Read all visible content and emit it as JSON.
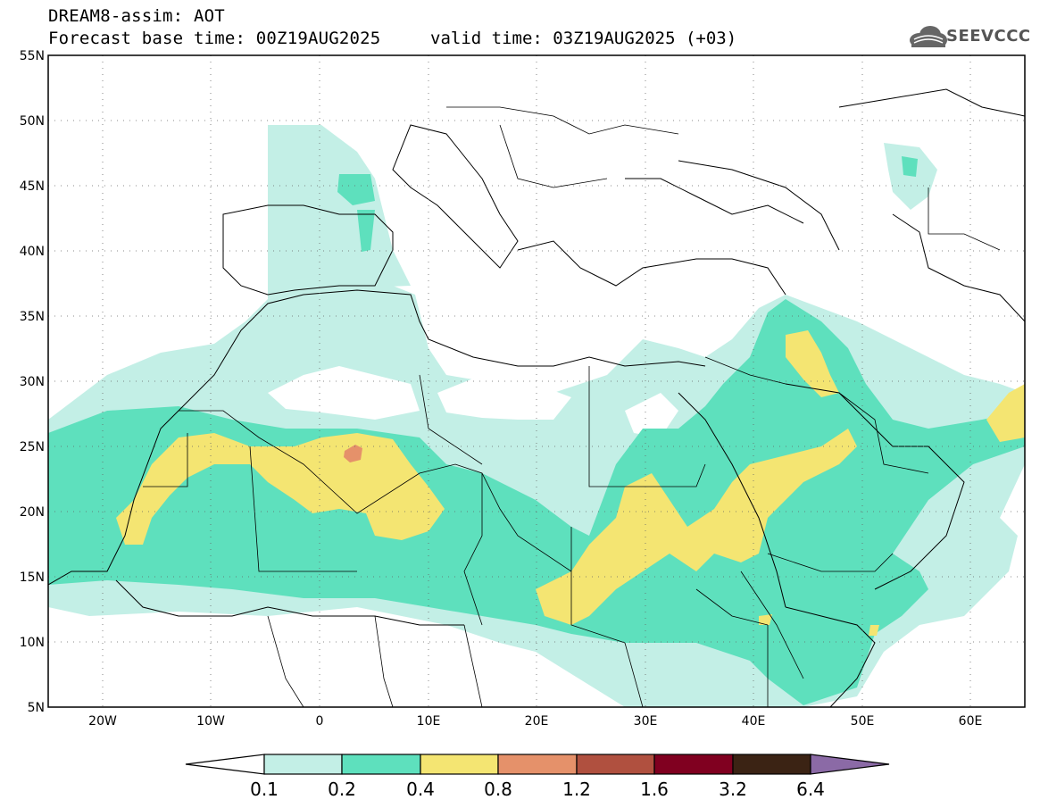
{
  "header": {
    "model_line": "DREAM8-assim: AOT",
    "base_time": "Forecast base time: 00Z19AUG2025",
    "valid_time": "valid time: 03Z19AUG2025 (+03)",
    "logo_text": "SEEVCCC"
  },
  "map": {
    "lon_range": [
      -25,
      65
    ],
    "lat_range": [
      5,
      55
    ],
    "lat_ticks": [
      "55N",
      "50N",
      "45N",
      "40N",
      "35N",
      "30N",
      "25N",
      "20N",
      "15N",
      "10N",
      "5N"
    ],
    "lon_ticks": [
      "20W",
      "10W",
      "0",
      "10E",
      "20E",
      "30E",
      "40E",
      "50E",
      "60E"
    ],
    "field": "Aerosol optical thickness (AOT)"
  },
  "colorbar": {
    "levels": [
      "0.1",
      "0.2",
      "0.4",
      "0.8",
      "1.2",
      "1.6",
      "3.2",
      "6.4"
    ],
    "colors": {
      "lt_01": "#ffffff",
      "c_01_02": "#c3efe6",
      "c_02_04": "#5ee0bd",
      "c_04_08": "#f4e572",
      "c_08_12": "#e5916a",
      "c_12_16": "#b0503f",
      "c_16_32": "#800020",
      "c_32_64": "#3b2314",
      "gt_64": "#8b6aa6"
    }
  }
}
